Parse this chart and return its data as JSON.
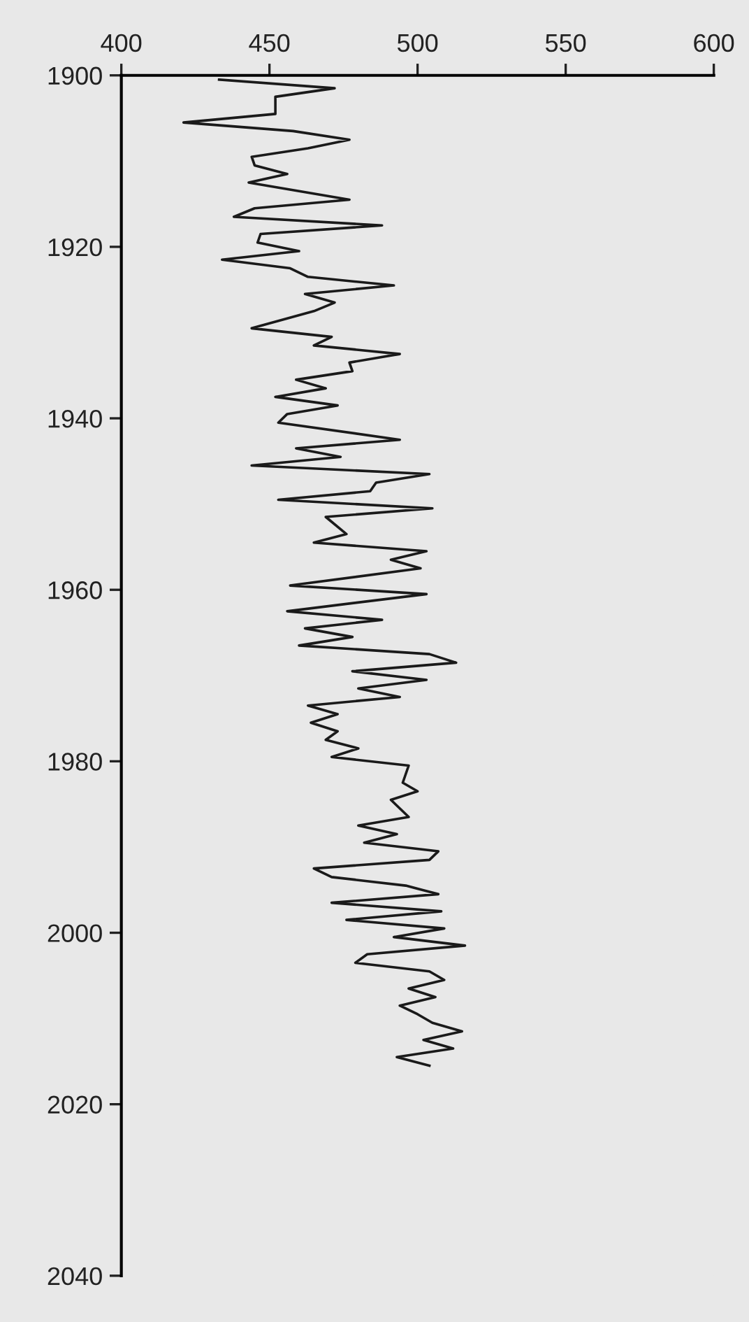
{
  "chart_data": {
    "type": "line",
    "orientation": "horizontal",
    "color": "#1a1a1a",
    "x": [
      1900.5,
      1901.5,
      1902.5,
      1904.5,
      1905.5,
      1906.5,
      1907.5,
      1908.5,
      1909.5,
      1910.5,
      1911.5,
      1912.5,
      1914.5,
      1915.5,
      1916.5,
      1917.5,
      1918.5,
      1919.5,
      1920.5,
      1921.5,
      1922.5,
      1923.5,
      1924.5,
      1925.5,
      1926.5,
      1927.5,
      1929.5,
      1930.5,
      1931.5,
      1932.5,
      1933.5,
      1934.5,
      1935.5,
      1936.5,
      1937.5,
      1938.5,
      1939.5,
      1940.5,
      1942.5,
      1943.5,
      1944.5,
      1945.5,
      1946.5,
      1947.5,
      1948.5,
      1949.5,
      1950.5,
      1951.5,
      1953.5,
      1954.5,
      1955.5,
      1956.5,
      1957.5,
      1959.5,
      1960.5,
      1962.5,
      1963.5,
      1964.5,
      1965.5,
      1966.5,
      1967.5,
      1968.5,
      1969.5,
      1970.5,
      1971.5,
      1972.5,
      1973.5,
      1974.5,
      1975.5,
      1976.5,
      1977.5,
      1978.5,
      1979.5,
      1980.5,
      1982.5,
      1983.5,
      1984.5,
      1986.5,
      1987.5,
      1988.5,
      1989.5,
      1990.5,
      1991.5,
      1992.5,
      1993.5,
      1994.5,
      1995.5,
      1996.5,
      1997.5,
      1998.5,
      1999.5,
      2000.5,
      2001.5,
      2002.5,
      2003.5,
      2004.5,
      2005.5,
      2006.5,
      2007.5,
      2008.5,
      2009.5,
      2010.5,
      2011.5,
      2012.5,
      2013.5,
      2014.5,
      2015.5
    ],
    "values": [
      433,
      472,
      452,
      452,
      421,
      458,
      477,
      463,
      444,
      445,
      456,
      443,
      477,
      445,
      438,
      488,
      447,
      446,
      460,
      434,
      457,
      463,
      492,
      462,
      472,
      465,
      444,
      471,
      465,
      494,
      477,
      478,
      459,
      469,
      452,
      473,
      456,
      453,
      494,
      459,
      474,
      444,
      504,
      486,
      484,
      453,
      505,
      469,
      476,
      465,
      503,
      491,
      501,
      457,
      503,
      456,
      488,
      462,
      478,
      460,
      504,
      513,
      478,
      503,
      480,
      494,
      463,
      473,
      464,
      473,
      469,
      480,
      471,
      497,
      495,
      500,
      491,
      497,
      480,
      493,
      482,
      507,
      504,
      465,
      471,
      496,
      507,
      471,
      508,
      476,
      509,
      492,
      516,
      483,
      479,
      504,
      509,
      497,
      506,
      494,
      500,
      505,
      515,
      502,
      512,
      493,
      504
    ],
    "xlim": [
      400,
      600
    ],
    "xticks": [
      400,
      450,
      500,
      550,
      600
    ],
    "ylim": [
      2040,
      1900
    ],
    "yticks": [
      1900,
      1920,
      1940,
      1960,
      1980,
      2000,
      2020,
      2040
    ],
    "grid": false,
    "legend": false,
    "marker": "none",
    "line_style": "solid"
  }
}
